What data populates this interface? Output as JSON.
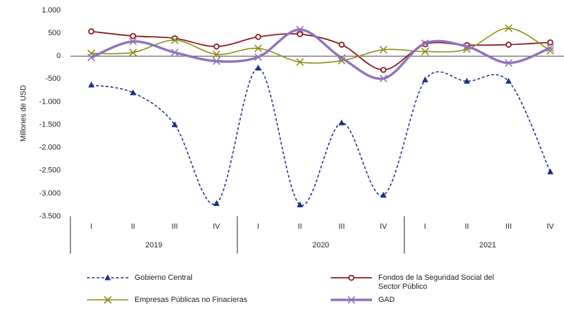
{
  "chart_data": {
    "type": "line",
    "y_label": "Millones de USD",
    "categories": [
      "I",
      "II",
      "III",
      "IV",
      "I",
      "II",
      "III",
      "IV",
      "I",
      "II",
      "III",
      "IV"
    ],
    "groups": [
      "2019",
      "2020",
      "2021"
    ],
    "series": [
      {
        "name": "Gobierno Central",
        "color": "#1f2f8a",
        "values": [
          -630,
          -800,
          -1500,
          -3220,
          -260,
          -3250,
          -1460,
          -3040,
          -520,
          -550,
          -550,
          -2530
        ]
      },
      {
        "name": "Fondos de la Seguridad Social del Sector Público",
        "color": "#8b1a1a",
        "values": [
          540,
          440,
          390,
          210,
          420,
          480,
          250,
          -300,
          260,
          240,
          250,
          300
        ]
      },
      {
        "name": "Empresas Públicas no Finacieras",
        "color": "#8c8c12",
        "values": [
          60,
          80,
          350,
          40,
          170,
          -130,
          -100,
          140,
          100,
          150,
          610,
          120
        ]
      },
      {
        "name": "GAD",
        "color": "#9272bd",
        "values": [
          -30,
          320,
          80,
          -110,
          -20,
          580,
          -40,
          -490,
          280,
          210,
          -150,
          180
        ]
      }
    ],
    "ylim": [
      -3500,
      1000
    ],
    "yticks": [
      {
        "value": -3500,
        "label": "-3.500"
      },
      {
        "value": -3000,
        "label": "-3.000"
      },
      {
        "value": -2500,
        "label": "-2.500"
      },
      {
        "value": -2000,
        "label": "-2.000"
      },
      {
        "value": -1500,
        "label": "-1.500"
      },
      {
        "value": -1000,
        "label": "-1.000"
      },
      -500,
      0,
      500,
      {
        "value": 1000,
        "label": "1.000"
      }
    ]
  }
}
